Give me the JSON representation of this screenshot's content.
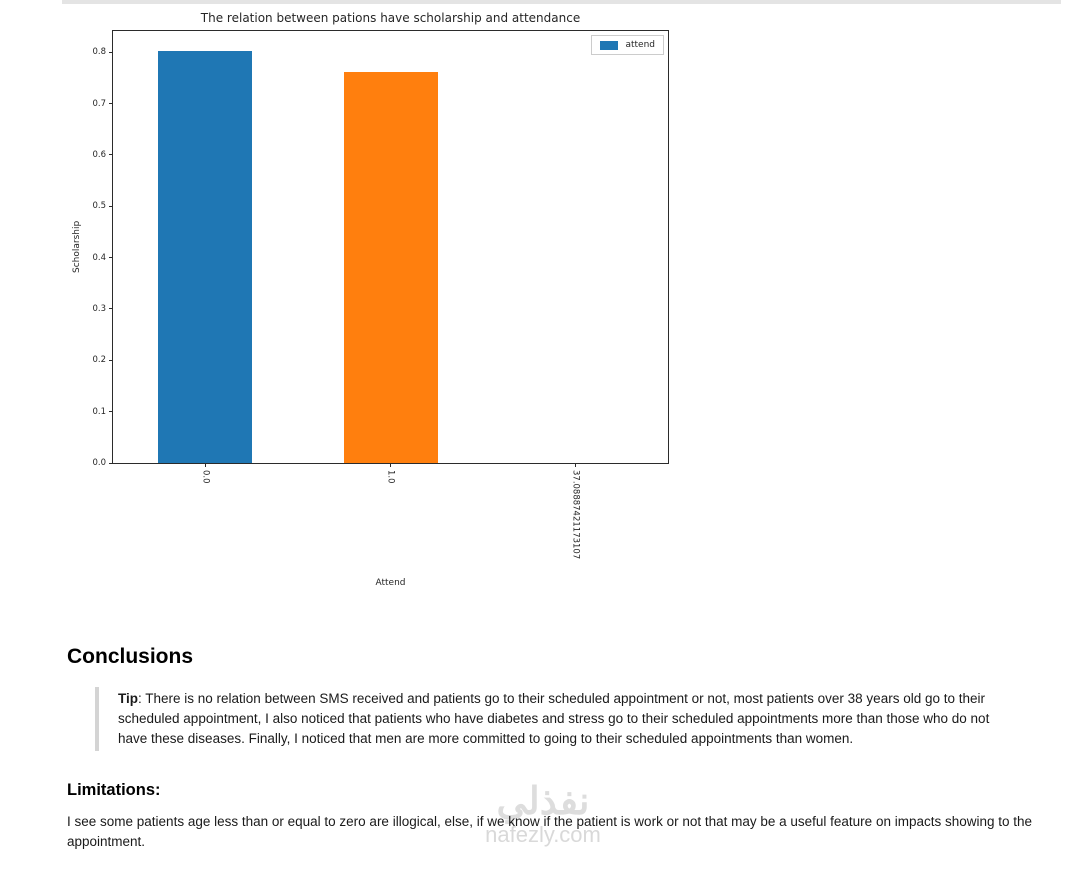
{
  "window": {
    "top_strip_color": "#e4e4e4"
  },
  "chart_data": {
    "type": "bar",
    "title": "The relation between pations have scholarship and attendance",
    "xlabel": "Attend",
    "ylabel": "Scholarship",
    "categories": [
      "0.0",
      "1.0",
      "37.08887421173107"
    ],
    "values": [
      0.803,
      0.762,
      0
    ],
    "bar_colors": [
      "#1f77b4",
      "#ff7f0e",
      "#2ca02c"
    ],
    "ylim": [
      0,
      0.8414
    ],
    "yticks": [
      "0.0",
      "0.1",
      "0.2",
      "0.3",
      "0.4",
      "0.5",
      "0.6",
      "0.7",
      "0.8"
    ],
    "x_tick_rotation": 90,
    "grid": false,
    "legend": {
      "position": "upper right",
      "entries": [
        {
          "label": "attend",
          "color": "#1f77b4"
        }
      ]
    }
  },
  "conclusions": {
    "heading": "Conclusions",
    "tip_label": "Tip",
    "tip_text": ": There is no relation between SMS received and patients go to their scheduled appointment or not, most patients over 38 years old go to their scheduled appointment, I also noticed that patients who have diabetes and stress go to their scheduled appointments more than those who do not have these diseases. Finally, I noticed that men are more committed to going to their scheduled appointments than women."
  },
  "limitations": {
    "heading": "Limitations:",
    "text": "I see some patients age less than or equal to zero are illogical, else, if we know if the patient is work or not that may be a useful feature on impacts showing to the appointment."
  },
  "watermark": {
    "brand_arabic": "نفذلي",
    "brand_domain": "nafezly.com"
  }
}
